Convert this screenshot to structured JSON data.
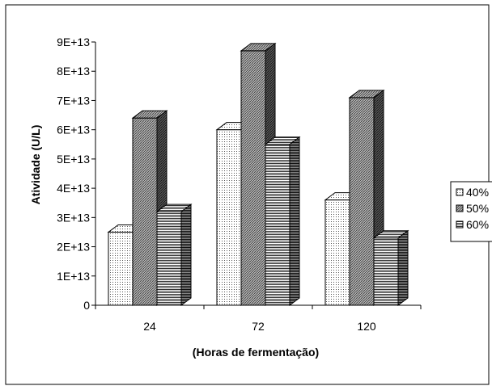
{
  "chart_data": {
    "type": "bar",
    "style": "3d-clustered",
    "categories": [
      "24",
      "72",
      "120"
    ],
    "series": [
      {
        "name": "40%",
        "values": [
          25000000000000.0,
          60000000000000.0,
          36000000000000.0
        ],
        "pattern": "dots"
      },
      {
        "name": "50%",
        "values": [
          64000000000000.0,
          87000000000000.0,
          71000000000000.0
        ],
        "pattern": "crosshatch"
      },
      {
        "name": "60%",
        "values": [
          32000000000000.0,
          55000000000000.0,
          23000000000000.0
        ],
        "pattern": "hlines"
      }
    ],
    "yticks": [
      "0",
      "1E+13",
      "2E+13",
      "3E+13",
      "4E+13",
      "5E+13",
      "6E+13",
      "7E+13",
      "8E+13",
      "9E+13"
    ],
    "ylim": [
      0,
      90000000000000.0
    ],
    "ylabel": "Atividade (U/L)",
    "xlabel": "(Horas de fermentação)",
    "legend_position": "right",
    "grid": false
  }
}
